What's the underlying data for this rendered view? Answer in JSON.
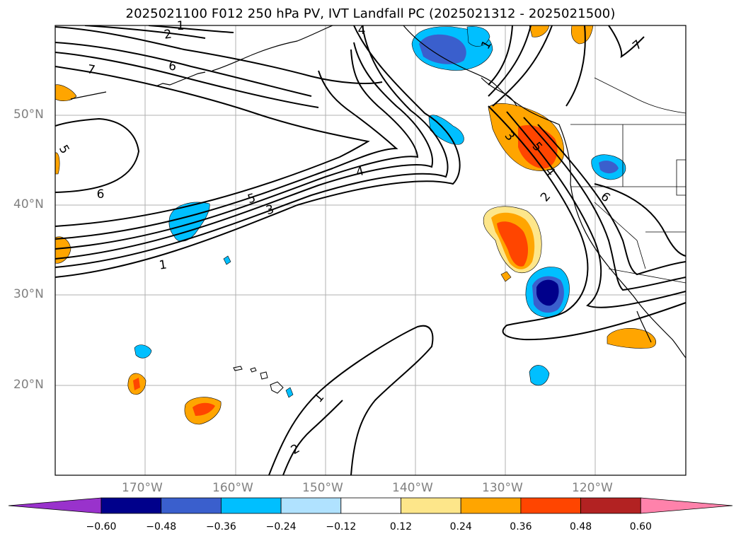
{
  "title": "2025021100 F012 250 hPa PV, IVT Landfall PC (2025021312 - 2025021500)",
  "map": {
    "lon_range": [
      -180,
      -110
    ],
    "lat_range": [
      10,
      60
    ],
    "lat_ticks": [
      "50°N",
      "40°N",
      "30°N",
      "20°N"
    ],
    "lon_ticks": [
      "170°W",
      "160°W",
      "150°W",
      "140°W",
      "130°W",
      "120°W"
    ],
    "contour_labels": [
      "2",
      "1",
      "4",
      "1",
      "7",
      "7",
      "6",
      "5",
      "6",
      "4",
      "5",
      "3",
      "1",
      "3",
      "5",
      "4",
      "2",
      "6",
      "1",
      "2"
    ],
    "contour_color": "#000000",
    "grid": true
  },
  "colorbar": {
    "labels": [
      "−0.60",
      "−0.48",
      "−0.36",
      "−0.24",
      "−0.12",
      "0.12",
      "0.24",
      "0.36",
      "0.48",
      "0.60"
    ],
    "colors": [
      "#9932cc",
      "#00008b",
      "#3a5fcd",
      "#00bfff",
      "#b0e2ff",
      "#ffffff",
      "#fde68a",
      "#ffa500",
      "#ff4500",
      "#b22222",
      "#ff82ab"
    ]
  }
}
